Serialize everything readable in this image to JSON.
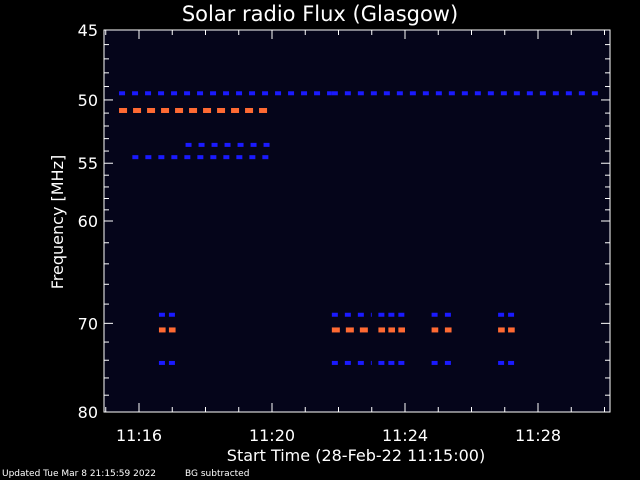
{
  "title": "Solar radio Flux (Glasgow)",
  "footer": {
    "updated": "Updated Tue Mar  8 21:15:59 2022",
    "note": "BG subtracted"
  },
  "chart_data": {
    "type": "heatmap",
    "title": "Solar radio Flux (Glasgow)",
    "xlabel": "Start Time (28-Feb-22 11:15:00)",
    "ylabel": "Frequency [MHz]",
    "xlim_minutes": [
      11.2,
      11.5
    ],
    "ylim_mhz": [
      45,
      80
    ],
    "y_scale": "log",
    "x_ticks": [
      {
        "label": "11:16",
        "minute": 16
      },
      {
        "label": "11:20",
        "minute": 20
      },
      {
        "label": "11:24",
        "minute": 24
      },
      {
        "label": "11:28",
        "minute": 28
      }
    ],
    "y_ticks": [
      {
        "label": "45",
        "mhz": 45
      },
      {
        "label": "50",
        "mhz": 50
      },
      {
        "label": "55",
        "mhz": 55
      },
      {
        "label": "60",
        "mhz": 60
      },
      {
        "label": "70",
        "mhz": 70
      },
      {
        "label": "80",
        "mhz": 80
      }
    ],
    "colors": {
      "background": "#05051a",
      "low": "#1a1aff",
      "high": "#ff6a33",
      "peak": "#ffaa66"
    },
    "emission_bands": [
      {
        "mhz": 49.5,
        "level": "low",
        "minutes": [
          [
            15.4,
            21.8
          ],
          [
            21.8,
            30.0
          ]
        ]
      },
      {
        "mhz": 50.8,
        "level": "high",
        "minutes": [
          [
            15.4,
            20.0
          ]
        ]
      },
      {
        "mhz": 53.5,
        "level": "low",
        "minutes": [
          [
            17.4,
            20.0
          ]
        ]
      },
      {
        "mhz": 54.5,
        "level": "low",
        "minutes": [
          [
            15.8,
            20.0
          ]
        ]
      },
      {
        "mhz": 69.1,
        "level": "low",
        "minutes": [
          [
            16.6,
            16.8
          ],
          [
            16.9,
            17.1
          ],
          [
            21.8,
            23.0
          ],
          [
            23.2,
            23.4
          ],
          [
            23.5,
            23.7
          ],
          [
            23.8,
            24.0
          ],
          [
            24.8,
            25.0
          ],
          [
            25.2,
            25.4
          ],
          [
            26.8,
            27.0
          ],
          [
            27.1,
            27.3
          ]
        ]
      },
      {
        "mhz": 70.7,
        "level": "high",
        "minutes": [
          [
            16.6,
            16.8
          ],
          [
            16.9,
            17.1
          ],
          [
            21.8,
            23.0
          ],
          [
            23.2,
            23.4
          ],
          [
            23.5,
            23.7
          ],
          [
            23.8,
            24.0
          ],
          [
            24.8,
            25.0
          ],
          [
            25.2,
            25.4
          ],
          [
            26.8,
            27.0
          ],
          [
            27.1,
            27.3
          ]
        ]
      },
      {
        "mhz": 74.3,
        "level": "low",
        "minutes": [
          [
            16.6,
            16.8
          ],
          [
            16.9,
            17.1
          ],
          [
            21.8,
            23.0
          ],
          [
            23.2,
            23.4
          ],
          [
            23.5,
            23.7
          ],
          [
            23.8,
            24.0
          ],
          [
            24.8,
            25.0
          ],
          [
            25.2,
            25.4
          ],
          [
            26.8,
            27.0
          ],
          [
            27.1,
            27.3
          ]
        ]
      }
    ]
  }
}
